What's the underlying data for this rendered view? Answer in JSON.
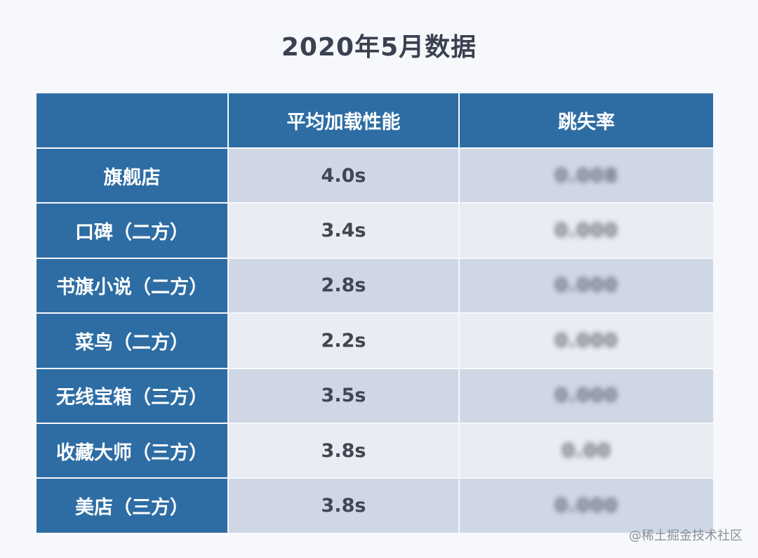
{
  "title": "2020年5月数据",
  "table": {
    "headers": [
      "",
      "平均加载性能",
      "跳失率"
    ],
    "rows": [
      {
        "name": "旗舰店",
        "load": "4.0s",
        "bounce": "0.008"
      },
      {
        "name": "口碑（二方）",
        "load": "3.4s",
        "bounce": "0.000"
      },
      {
        "name": "书旗小说（二方）",
        "load": "2.8s",
        "bounce": "0.000"
      },
      {
        "name": "菜鸟（二方）",
        "load": "2.2s",
        "bounce": "0.000"
      },
      {
        "name": "无线宝箱（三方）",
        "load": "3.5s",
        "bounce": "0.000"
      },
      {
        "name": "收藏大师（三方）",
        "load": "3.8s",
        "bounce": "0.00"
      },
      {
        "name": "美店（三方）",
        "load": "3.8s",
        "bounce": "0.000"
      }
    ]
  },
  "watermark": "@稀土掘金技术社区"
}
